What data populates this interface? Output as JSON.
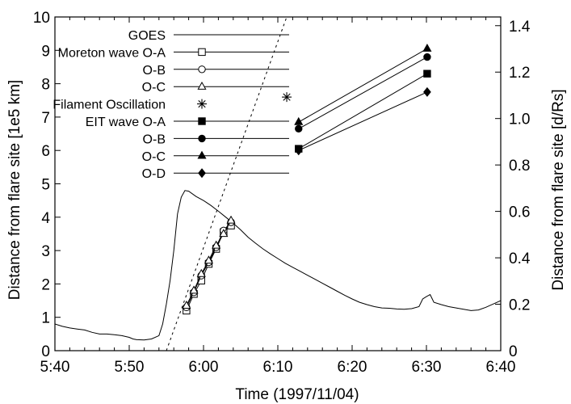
{
  "chart_data": {
    "type": "line",
    "xlabel": "Time (1997/11/04)",
    "ylabel_left": "Distance from flare site [1e5 km]",
    "ylabel_right": "Distance from flare site [d/Rs]",
    "x_unit": "minutes",
    "xlim": [
      340,
      400
    ],
    "ylim_left": [
      0,
      10
    ],
    "ylim_right": [
      0,
      1.4375
    ],
    "x_ticks": [
      {
        "value": 340,
        "label": "5:40"
      },
      {
        "value": 350,
        "label": "5:50"
      },
      {
        "value": 360,
        "label": "6:00"
      },
      {
        "value": 370,
        "label": "6:10"
      },
      {
        "value": 380,
        "label": "6:20"
      },
      {
        "value": 390,
        "label": "6:30"
      },
      {
        "value": 400,
        "label": "6:40"
      }
    ],
    "y_left_ticks": [
      "0",
      "1",
      "2",
      "3",
      "4",
      "5",
      "6",
      "7",
      "8",
      "9",
      "10"
    ],
    "y_right_ticks": [
      {
        "value": 0,
        "label": "0"
      },
      {
        "value": 0.2,
        "label": "0.2"
      },
      {
        "value": 0.4,
        "label": "0.4"
      },
      {
        "value": 0.6,
        "label": "0.6"
      },
      {
        "value": 0.8,
        "label": "0.8"
      },
      {
        "value": 1.0,
        "label": "1.0"
      },
      {
        "value": 1.2,
        "label": "1.2"
      },
      {
        "value": 1.4,
        "label": "1.4"
      }
    ],
    "legend": [
      {
        "label": "GOES",
        "marker": "none"
      },
      {
        "label": "Moreton wave O-A",
        "marker": "open-square"
      },
      {
        "label": "O-B",
        "marker": "open-circle"
      },
      {
        "label": "O-C",
        "marker": "open-triangle"
      },
      {
        "label": "Filament Oscillation",
        "marker": "asterisk",
        "line": false
      },
      {
        "label": "EIT wave O-A",
        "marker": "filled-square"
      },
      {
        "label": "O-B",
        "marker": "filled-circle"
      },
      {
        "label": "O-C",
        "marker": "filled-triangle"
      },
      {
        "label": "O-D",
        "marker": "filled-diamond"
      }
    ],
    "series": [
      {
        "name": "GOES",
        "marker": "none",
        "x": [
          340,
          341,
          342,
          343,
          344,
          345,
          346,
          347,
          348,
          349,
          350,
          350.5,
          351,
          352,
          353,
          354,
          354.5,
          355,
          355.5,
          356,
          356.5,
          357,
          357.5,
          358,
          359,
          360,
          361,
          362,
          363,
          364,
          365,
          366,
          367,
          368,
          369,
          370,
          371,
          372,
          373,
          374,
          375,
          376,
          377,
          378,
          379,
          380,
          381,
          382,
          383,
          384,
          385,
          386,
          387,
          388,
          389,
          389.5,
          390,
          390.5,
          391,
          392,
          393,
          394,
          395,
          396,
          397,
          398,
          399,
          400
        ],
        "y": [
          0.8,
          0.73,
          0.68,
          0.65,
          0.62,
          0.55,
          0.5,
          0.5,
          0.48,
          0.45,
          0.4,
          0.35,
          0.33,
          0.32,
          0.35,
          0.45,
          0.8,
          1.4,
          2.1,
          3.0,
          4.1,
          4.6,
          4.8,
          4.78,
          4.62,
          4.5,
          4.35,
          4.18,
          4.0,
          3.82,
          3.62,
          3.4,
          3.22,
          3.05,
          2.9,
          2.76,
          2.62,
          2.5,
          2.38,
          2.26,
          2.14,
          2.02,
          1.9,
          1.78,
          1.66,
          1.55,
          1.45,
          1.38,
          1.32,
          1.28,
          1.27,
          1.25,
          1.24,
          1.26,
          1.32,
          1.55,
          1.62,
          1.68,
          1.45,
          1.38,
          1.32,
          1.28,
          1.24,
          1.2,
          1.22,
          1.3,
          1.4,
          1.5
        ]
      },
      {
        "name": "Filament Oscillation",
        "marker": "none",
        "dashed": true,
        "x": [
          355,
          371.2
        ],
        "y": [
          0,
          10
        ]
      },
      {
        "name": "Moreton wave O-A",
        "marker": "open-square",
        "x": [
          357.7,
          358.7,
          359.7,
          360.7,
          361.7,
          362.7,
          363.7
        ],
        "y": [
          1.2,
          1.7,
          2.1,
          2.6,
          3.05,
          3.55,
          3.75
        ]
      },
      {
        "name": "O-B",
        "marker": "open-circle",
        "x": [
          357.7,
          358.7,
          359.7,
          360.7,
          361.7,
          362.7,
          363.7
        ],
        "y": [
          1.3,
          1.75,
          2.25,
          2.65,
          3.1,
          3.6,
          3.85
        ]
      },
      {
        "name": "O-C",
        "marker": "open-triangle",
        "x": [
          357.7,
          358.7,
          359.7,
          360.7,
          361.7,
          362.7,
          363.7
        ],
        "y": [
          1.35,
          1.8,
          2.3,
          2.7,
          3.15,
          3.5,
          3.9
        ]
      },
      {
        "name": "Filament Oscillation",
        "marker": "asterisk",
        "no_line": true,
        "x": [
          371.2
        ],
        "y": [
          7.6
        ]
      },
      {
        "name": "EIT wave O-A",
        "marker": "filled-square",
        "x": [
          372.8,
          390.1
        ],
        "y": [
          6.05,
          8.3
        ]
      },
      {
        "name": "O-B",
        "marker": "filled-circle",
        "x": [
          372.8,
          390.1
        ],
        "y": [
          6.65,
          8.8
        ]
      },
      {
        "name": "O-C",
        "marker": "filled-triangle",
        "x": [
          372.8,
          390.1
        ],
        "y": [
          6.85,
          9.05
        ]
      },
      {
        "name": "O-D",
        "marker": "filled-diamond",
        "x": [
          372.8,
          390.1
        ],
        "y": [
          6.0,
          7.75
        ]
      }
    ],
    "grid": false,
    "legend_placement": "top-left-center"
  }
}
